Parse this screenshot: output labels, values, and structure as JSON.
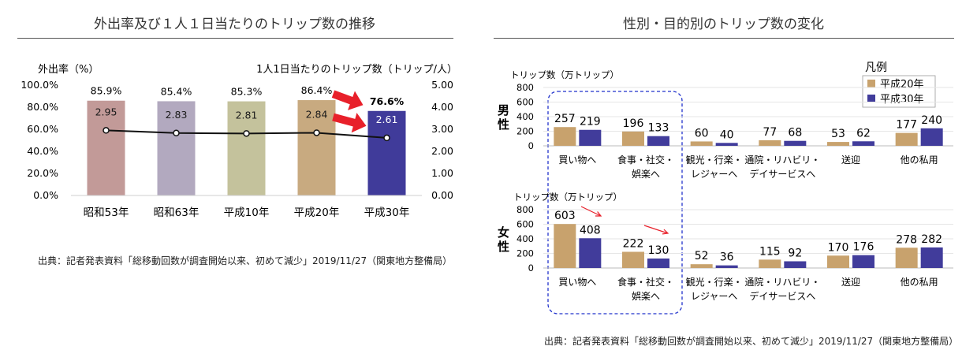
{
  "left": {
    "title": "外出率及び１人１日当たりのトリップ数の推移",
    "source": "出典：記者発表資料「総移動回数が調査開始以来、初めて減少」2019/11/27（関東地方整備局）",
    "chart_data": {
      "type": "bar",
      "categories": [
        "昭和53年",
        "昭和63年",
        "平成10年",
        "平成20年",
        "平成30年"
      ],
      "series": [
        {
          "name": "外出率",
          "values": [
            85.9,
            85.4,
            85.3,
            86.4,
            76.6
          ],
          "labels": [
            "85.9%",
            "85.4%",
            "85.3%",
            "86.4%",
            "76.6%"
          ],
          "colors": [
            "#c29a98",
            "#b2a9bf",
            "#c4c29c",
            "#c8aa80",
            "#403b9a"
          ]
        },
        {
          "name": "1人1日当たりのトリップ数",
          "values": [
            2.95,
            2.83,
            2.81,
            2.84,
            2.61
          ],
          "labels": [
            "2.95",
            "2.83",
            "2.81",
            "2.84",
            "2.61"
          ]
        }
      ],
      "ylabel": "外出率（%）",
      "y2label": "1人1日当たりのトリップ数（トリップ/人）",
      "ylim": [
        0,
        100
      ],
      "y2lim": [
        0,
        5
      ],
      "yticks": [
        "0.0%",
        "20.0%",
        "40.0%",
        "60.0%",
        "80.0%",
        "100.0%"
      ],
      "y2ticks": [
        "0.00",
        "1.00",
        "2.00",
        "3.00",
        "4.00",
        "5.00"
      ],
      "highlight_arrow_color": "#e8202a"
    }
  },
  "right": {
    "title": "性別・目的別のトリップ数の変化",
    "source": "出典：記者発表資料「総移動回数が調査開始以来、初めて減少」2019/11/27（関東地方整備局）",
    "legend_title": "凡例",
    "colors": {
      "h20": "#c8a26d",
      "h30": "#413c9b"
    },
    "chart_data": [
      {
        "type": "bar",
        "group": "男性",
        "ylabel": "トリップ数（万トリップ）",
        "categories": [
          "買い物へ",
          "食事・社交・娯楽へ",
          "観光・行楽・レジャーへ",
          "通院・リハビリ・デイサービスへ",
          "送迎",
          "他の私用"
        ],
        "series": [
          {
            "name": "平成20年",
            "values": [
              257,
              196,
              60,
              77,
              53,
              177
            ]
          },
          {
            "name": "平成30年",
            "values": [
              219,
              133,
              40,
              68,
              62,
              240
            ]
          }
        ],
        "ylim": [
          0,
          800
        ],
        "yticks": [
          "0",
          "200",
          "400",
          "600",
          "800"
        ]
      },
      {
        "type": "bar",
        "group": "女性",
        "ylabel": "トリップ数（万トリップ）",
        "categories": [
          "買い物へ",
          "食事・社交・娯楽へ",
          "観光・行楽・レジャーへ",
          "通院・リハビリ・デイサービスへ",
          "送迎",
          "他の私用"
        ],
        "series": [
          {
            "name": "平成20年",
            "values": [
              603,
              222,
              52,
              115,
              170,
              278
            ]
          },
          {
            "name": "平成30年",
            "values": [
              408,
              130,
              36,
              92,
              176,
              282
            ]
          }
        ],
        "ylim": [
          0,
          800
        ],
        "yticks": [
          "0",
          "200",
          "400",
          "600",
          "800"
        ]
      }
    ],
    "category_lines": [
      [
        "買い物へ"
      ],
      [
        "食事・社交・",
        "娯楽へ"
      ],
      [
        "観光・行楽・",
        "レジャーへ"
      ],
      [
        "通院・リハビリ・",
        "デイサービスへ"
      ],
      [
        "送迎"
      ],
      [
        "他の私用"
      ]
    ],
    "group_label_chars": [
      [
        "男",
        "性"
      ],
      [
        "女",
        "性"
      ]
    ]
  }
}
